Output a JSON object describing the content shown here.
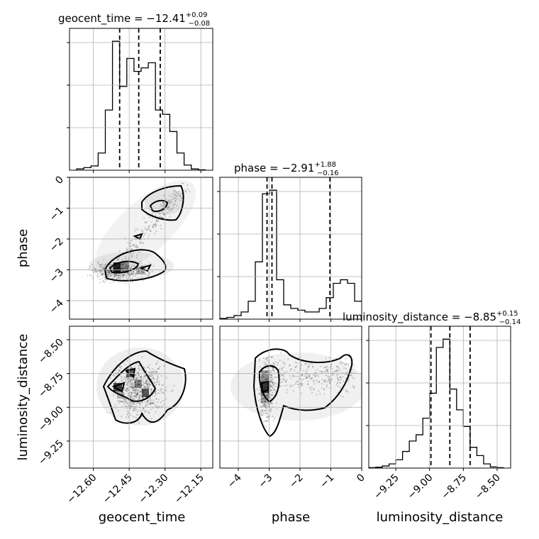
{
  "chart_data": {
    "type": "corner",
    "parameters": [
      "geocent_time",
      "phase",
      "luminosity_distance"
    ],
    "titles": [
      {
        "param": "geocent_time",
        "text": "geocent_time = −12.41",
        "plus": "+0.09",
        "minus": "−0.08"
      },
      {
        "param": "phase",
        "text": "phase = −2.91",
        "plus": "+1.88",
        "minus": "−0.16"
      },
      {
        "param": "luminosity_distance",
        "text": "luminosity_distance = −8.85",
        "plus": "+0.15",
        "minus": "−0.14"
      }
    ],
    "axis_labels": {
      "x": [
        "geocent_time",
        "phase",
        "luminosity_distance"
      ],
      "y": [
        "phase",
        "luminosity_distance"
      ]
    },
    "ranges": {
      "geocent_time": [
        -12.7,
        -12.1
      ],
      "phase": [
        -4.6,
        0.0
      ],
      "luminosity_distance": [
        -9.45,
        -8.4
      ]
    },
    "ticks": {
      "geocent_time": [
        -12.6,
        -12.45,
        -12.3,
        -12.15
      ],
      "geocent_time_labels": [
        "−12.60",
        "−12.45",
        "−12.30",
        "−12.15"
      ],
      "phase": [
        -4,
        -3,
        -2,
        -1,
        0
      ],
      "phase_labels": [
        "−4",
        "−3",
        "−2",
        "−1",
        "0"
      ],
      "luminosity_distance": [
        -9.25,
        -9.0,
        -8.75,
        -8.5
      ],
      "luminosity_distance_labels": [
        "−9.25",
        "−9.00",
        "−8.75",
        "−8.50"
      ]
    },
    "histograms": {
      "geocent_time": {
        "edges": [
          -12.67,
          -12.64,
          -12.61,
          -12.58,
          -12.55,
          -12.52,
          -12.49,
          -12.46,
          -12.43,
          -12.4,
          -12.37,
          -12.34,
          -12.31,
          -12.28,
          -12.25,
          -12.22,
          -12.19,
          -12.16,
          -12.13
        ],
        "counts": [
          0.3,
          0.6,
          1.0,
          4.0,
          14.0,
          30.0,
          19.5,
          26.0,
          23.0,
          23.8,
          25.0,
          14.0,
          13.0,
          9.0,
          4.0,
          1.2,
          0.3,
          0.1
        ],
        "quantiles": [
          -12.49,
          -12.41,
          -12.32
        ]
      },
      "phase": {
        "edges": [
          -4.6,
          -4.37,
          -4.14,
          -3.91,
          -3.68,
          -3.45,
          -3.22,
          -2.99,
          -2.76,
          -2.53,
          -2.3,
          -2.07,
          -1.84,
          -1.61,
          -1.38,
          -1.15,
          -0.92,
          -0.69,
          -0.46,
          -0.23,
          0.0
        ],
        "counts": [
          0.2,
          0.5,
          1.0,
          2.0,
          5.0,
          16.0,
          35.0,
          36.0,
          11.0,
          4.0,
          3.0,
          2.5,
          2.0,
          2.0,
          3.0,
          6.0,
          10.0,
          11.0,
          10.0,
          5.0
        ],
        "quantiles": [
          -3.07,
          -2.91,
          -1.03
        ]
      },
      "luminosity_distance": {
        "edges": [
          -9.45,
          -9.4,
          -9.35,
          -9.3,
          -9.25,
          -9.2,
          -9.15,
          -9.1,
          -9.05,
          -9.0,
          -8.95,
          -8.9,
          -8.85,
          -8.8,
          -8.75,
          -8.7,
          -8.65,
          -8.6,
          -8.55,
          -8.5,
          -8.45
        ],
        "counts": [
          0.1,
          0.2,
          0.5,
          1.0,
          2.0,
          4.0,
          6.5,
          8.0,
          12.0,
          18.0,
          29.0,
          31.0,
          19.0,
          14.0,
          10.0,
          5.0,
          3.0,
          1.0,
          0.3,
          0.1
        ],
        "quantiles": [
          -8.99,
          -8.85,
          -8.7
        ]
      }
    },
    "grid": true
  }
}
